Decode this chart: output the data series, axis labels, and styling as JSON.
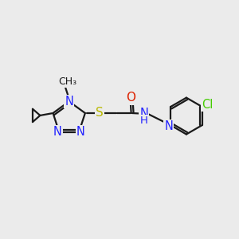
{
  "bg_color": "#ebebeb",
  "bond_color": "#1a1a1a",
  "triazole_N_color": "#2222ff",
  "S_color": "#b8b800",
  "O_color": "#dd2200",
  "N_amide_color": "#2222ff",
  "pyridine_N_color": "#2222ff",
  "Cl_color": "#44cc00",
  "line_width": 1.6,
  "font_size": 10.5,
  "fig_width": 3.0,
  "fig_height": 3.0,
  "xlim": [
    0,
    10
  ],
  "ylim": [
    0,
    10
  ]
}
